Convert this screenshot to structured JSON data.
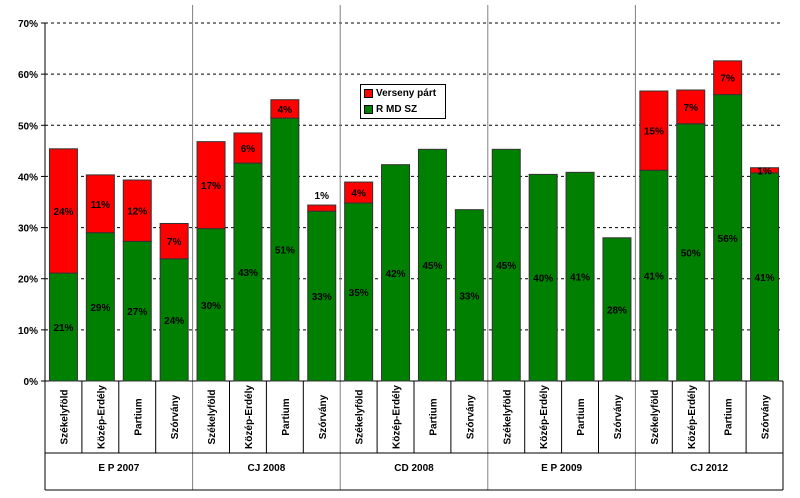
{
  "chart_data": {
    "type": "bar",
    "stacked": true,
    "title": "",
    "xlabel": "",
    "ylabel": "",
    "ylim": [
      0,
      70
    ],
    "yticks": [
      "0%",
      "10%",
      "20%",
      "30%",
      "40%",
      "50%",
      "60%",
      "70%"
    ],
    "grid": true,
    "legend_position": "top-center",
    "groups": [
      {
        "label": "E P 2007",
        "categories": [
          "Székelyföld",
          "Közép-Erdély",
          "Partium",
          "Szórvány"
        ]
      },
      {
        "label": "CJ 2008",
        "categories": [
          "Székelyföld",
          "Közép-Erdély",
          "Partium",
          "Szórvány"
        ]
      },
      {
        "label": "CD 2008",
        "categories": [
          "Székelyföld",
          "Közép-Erdély",
          "Partium",
          "Szórvány"
        ]
      },
      {
        "label": "E P 2009",
        "categories": [
          "Székelyföld",
          "Közép-Erdély",
          "Partium",
          "Szórvány"
        ]
      },
      {
        "label": "CJ 2012",
        "categories": [
          "Székelyföld",
          "Közép-Erdély",
          "Partium",
          "Szórvány"
        ]
      }
    ],
    "series": [
      {
        "name": "R MD SZ",
        "color": "#008000",
        "values": [
          21.1,
          29.0,
          27.3,
          23.9,
          29.8,
          42.6,
          51.4,
          33.2,
          34.8,
          42.3,
          45.3,
          33.5,
          45.3,
          40.4,
          40.8,
          28.0,
          41.2,
          50.3,
          56.0,
          40.7
        ],
        "labels": [
          "21%",
          "29%",
          "27%",
          "24%",
          "30%",
          "43%",
          "51%",
          "33%",
          "35%",
          "42%",
          "45%",
          "33%",
          "45%",
          "40%",
          "41%",
          "28%",
          "41%",
          "50%",
          "56%",
          "41%"
        ]
      },
      {
        "name": "Verseny párt",
        "color": "#ff0000",
        "values": [
          24.3,
          11.3,
          12.0,
          6.9,
          17.0,
          5.9,
          3.6,
          1.2,
          4.1,
          0,
          0,
          0,
          0,
          0,
          0,
          0,
          15.5,
          6.6,
          6.6,
          1.0
        ],
        "labels": [
          "24%",
          "11%",
          "12%",
          "7%",
          "17%",
          "6%",
          "4%",
          "1%",
          "4%",
          "",
          "",
          "",
          "",
          "",
          "",
          "",
          "15%",
          "7%",
          "7%",
          "1%"
        ]
      }
    ]
  }
}
